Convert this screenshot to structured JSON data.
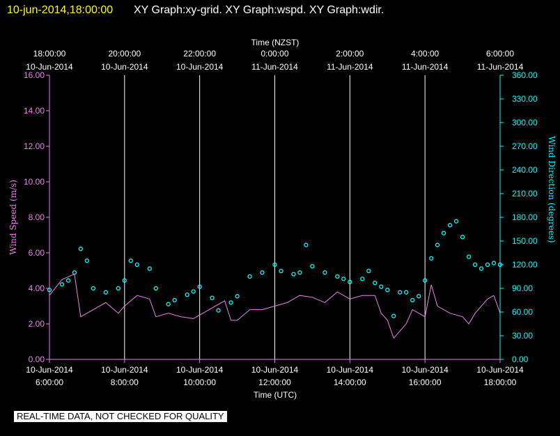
{
  "header": {
    "date_label": "10-jun-2014,18:00:00",
    "graphs_label": "XY Graph:xy-grid.  XY Graph:wspd.  XY Graph:wdir."
  },
  "footer": {
    "disclaimer": "REAL-TIME DATA, NOT CHECKED FOR QUALITY"
  },
  "colors": {
    "wind_speed": "#ee82ee",
    "wind_direction": "#00ffff",
    "grid": "#ffffff",
    "axes": "#ee82ee"
  },
  "chart_data": {
    "type": "line",
    "top_axis": {
      "title": "Time (NZST)",
      "ticks": [
        {
          "time": "18:00:00",
          "date": "10-Jun-2014"
        },
        {
          "time": "20:00:00",
          "date": "10-Jun-2014"
        },
        {
          "time": "22:00:00",
          "date": "10-Jun-2014"
        },
        {
          "time": "0:00:00",
          "date": "11-Jun-2014"
        },
        {
          "time": "2:00:00",
          "date": "11-Jun-2014"
        },
        {
          "time": "4:00:00",
          "date": "11-Jun-2014"
        },
        {
          "time": "6:00:00",
          "date": "11-Jun-2014"
        }
      ]
    },
    "bottom_axis": {
      "title": "Time (UTC)",
      "ticks": [
        {
          "date": "10-Jun-2014",
          "time": "6:00:00"
        },
        {
          "date": "10-Jun-2014",
          "time": "8:00:00"
        },
        {
          "date": "10-Jun-2014",
          "time": "10:00:00"
        },
        {
          "date": "10-Jun-2014",
          "time": "12:00:00"
        },
        {
          "date": "10-Jun-2014",
          "time": "14:00:00"
        },
        {
          "date": "10-Jun-2014",
          "time": "16:00:00"
        },
        {
          "date": "10-Jun-2014",
          "time": "18:00:00"
        }
      ],
      "range": [
        "2014-06-10T06:00:00Z",
        "2014-06-10T18:00:00Z"
      ]
    },
    "y_left": {
      "title": "Wind Speed (m/s)",
      "ylim": [
        0,
        16
      ],
      "tick_values": [
        0,
        2,
        4,
        6,
        8,
        10,
        12,
        14,
        16
      ],
      "tick_labels": [
        "0.00",
        "2.00",
        "4.00",
        "6.00",
        "8.00",
        "10.00",
        "12.00",
        "14.00",
        "16.00"
      ]
    },
    "y_right": {
      "title": "Wind Direction (degrees)",
      "ylim": [
        0,
        360
      ],
      "tick_values": [
        0,
        30,
        60,
        90,
        120,
        150,
        180,
        210,
        240,
        270,
        300,
        330,
        360
      ],
      "tick_labels": [
        "0.00",
        "30.00",
        "60.00",
        "90.00",
        "120.00",
        "150.00",
        "180.00",
        "210.00",
        "240.00",
        "270.00",
        "300.00",
        "330.00",
        "360.00"
      ]
    },
    "grid": "vertical",
    "series": [
      {
        "style": "line",
        "axis": "left",
        "x": [
          "2014-06-10T06:00:00Z",
          "2014-06-10T06:20:00Z",
          "2014-06-10T06:40:00Z",
          "2014-06-10T06:50:00Z",
          "2014-06-10T07:00:00Z",
          "2014-06-10T07:10:00Z",
          "2014-06-10T07:30:00Z",
          "2014-06-10T07:50:00Z",
          "2014-06-10T08:00:00Z",
          "2014-06-10T08:20:00Z",
          "2014-06-10T08:40:00Z",
          "2014-06-10T08:50:00Z",
          "2014-06-10T09:10:00Z",
          "2014-06-10T09:30:00Z",
          "2014-06-10T09:50:00Z",
          "2014-06-10T10:00:00Z",
          "2014-06-10T10:20:00Z",
          "2014-06-10T10:40:00Z",
          "2014-06-10T10:50:00Z",
          "2014-06-10T11:00:00Z",
          "2014-06-10T11:20:00Z",
          "2014-06-10T11:40:00Z",
          "2014-06-10T12:00:00Z",
          "2014-06-10T12:20:00Z",
          "2014-06-10T12:40:00Z",
          "2014-06-10T13:00:00Z",
          "2014-06-10T13:20:00Z",
          "2014-06-10T13:40:00Z",
          "2014-06-10T14:00:00Z",
          "2014-06-10T14:20:00Z",
          "2014-06-10T14:40:00Z",
          "2014-06-10T14:50:00Z",
          "2014-06-10T15:00:00Z",
          "2014-06-10T15:10:00Z",
          "2014-06-10T15:20:00Z",
          "2014-06-10T15:30:00Z",
          "2014-06-10T15:40:00Z",
          "2014-06-10T15:50:00Z",
          "2014-06-10T16:00:00Z",
          "2014-06-10T16:10:00Z",
          "2014-06-10T16:20:00Z",
          "2014-06-10T16:40:00Z",
          "2014-06-10T17:00:00Z",
          "2014-06-10T17:10:00Z",
          "2014-06-10T17:20:00Z",
          "2014-06-10T17:40:00Z",
          "2014-06-10T17:50:00Z",
          "2014-06-10T18:00:00Z"
        ],
        "y": [
          3.6,
          4.5,
          4.8,
          2.4,
          2.6,
          2.8,
          3.2,
          2.6,
          3.0,
          3.6,
          3.4,
          2.4,
          2.6,
          2.4,
          2.3,
          2.5,
          2.9,
          3.3,
          2.2,
          2.2,
          2.8,
          2.8,
          3.0,
          3.2,
          3.6,
          3.5,
          3.2,
          3.8,
          3.4,
          3.6,
          3.6,
          2.6,
          2.2,
          1.2,
          1.6,
          2.0,
          2.8,
          2.6,
          2.4,
          4.2,
          3.0,
          2.6,
          2.4,
          2.0,
          2.6,
          3.4,
          3.6,
          2.6
        ]
      },
      {
        "style": "scatter",
        "axis": "right",
        "x": [
          "2014-06-10T06:00:00Z",
          "2014-06-10T06:20:00Z",
          "2014-06-10T06:30:00Z",
          "2014-06-10T06:40:00Z",
          "2014-06-10T06:50:00Z",
          "2014-06-10T07:00:00Z",
          "2014-06-10T07:10:00Z",
          "2014-06-10T07:30:00Z",
          "2014-06-10T07:50:00Z",
          "2014-06-10T08:00:00Z",
          "2014-06-10T08:10:00Z",
          "2014-06-10T08:20:00Z",
          "2014-06-10T08:40:00Z",
          "2014-06-10T08:50:00Z",
          "2014-06-10T09:10:00Z",
          "2014-06-10T09:20:00Z",
          "2014-06-10T09:40:00Z",
          "2014-06-10T09:50:00Z",
          "2014-06-10T10:00:00Z",
          "2014-06-10T10:20:00Z",
          "2014-06-10T10:30:00Z",
          "2014-06-10T10:50:00Z",
          "2014-06-10T11:00:00Z",
          "2014-06-10T11:20:00Z",
          "2014-06-10T11:40:00Z",
          "2014-06-10T12:00:00Z",
          "2014-06-10T12:10:00Z",
          "2014-06-10T12:30:00Z",
          "2014-06-10T12:40:00Z",
          "2014-06-10T12:50:00Z",
          "2014-06-10T13:00:00Z",
          "2014-06-10T13:20:00Z",
          "2014-06-10T13:40:00Z",
          "2014-06-10T13:50:00Z",
          "2014-06-10T14:00:00Z",
          "2014-06-10T14:20:00Z",
          "2014-06-10T14:30:00Z",
          "2014-06-10T14:40:00Z",
          "2014-06-10T14:50:00Z",
          "2014-06-10T15:00:00Z",
          "2014-06-10T15:10:00Z",
          "2014-06-10T15:20:00Z",
          "2014-06-10T15:30:00Z",
          "2014-06-10T15:40:00Z",
          "2014-06-10T15:50:00Z",
          "2014-06-10T16:00:00Z",
          "2014-06-10T16:10:00Z",
          "2014-06-10T16:20:00Z",
          "2014-06-10T16:30:00Z",
          "2014-06-10T16:40:00Z",
          "2014-06-10T16:50:00Z",
          "2014-06-10T17:00:00Z",
          "2014-06-10T17:10:00Z",
          "2014-06-10T17:20:00Z",
          "2014-06-10T17:30:00Z",
          "2014-06-10T17:40:00Z",
          "2014-06-10T17:50:00Z",
          "2014-06-10T18:00:00Z"
        ],
        "y": [
          88,
          95,
          100,
          110,
          140,
          125,
          90,
          85,
          90,
          100,
          125,
          120,
          115,
          90,
          70,
          75,
          82,
          86,
          92,
          78,
          62,
          72,
          80,
          105,
          110,
          120,
          112,
          108,
          110,
          145,
          118,
          110,
          105,
          102,
          98,
          102,
          112,
          97,
          92,
          88,
          55,
          85,
          85,
          75,
          80,
          100,
          128,
          145,
          160,
          170,
          175,
          155,
          130,
          120,
          115,
          120,
          122,
          120
        ]
      }
    ]
  }
}
